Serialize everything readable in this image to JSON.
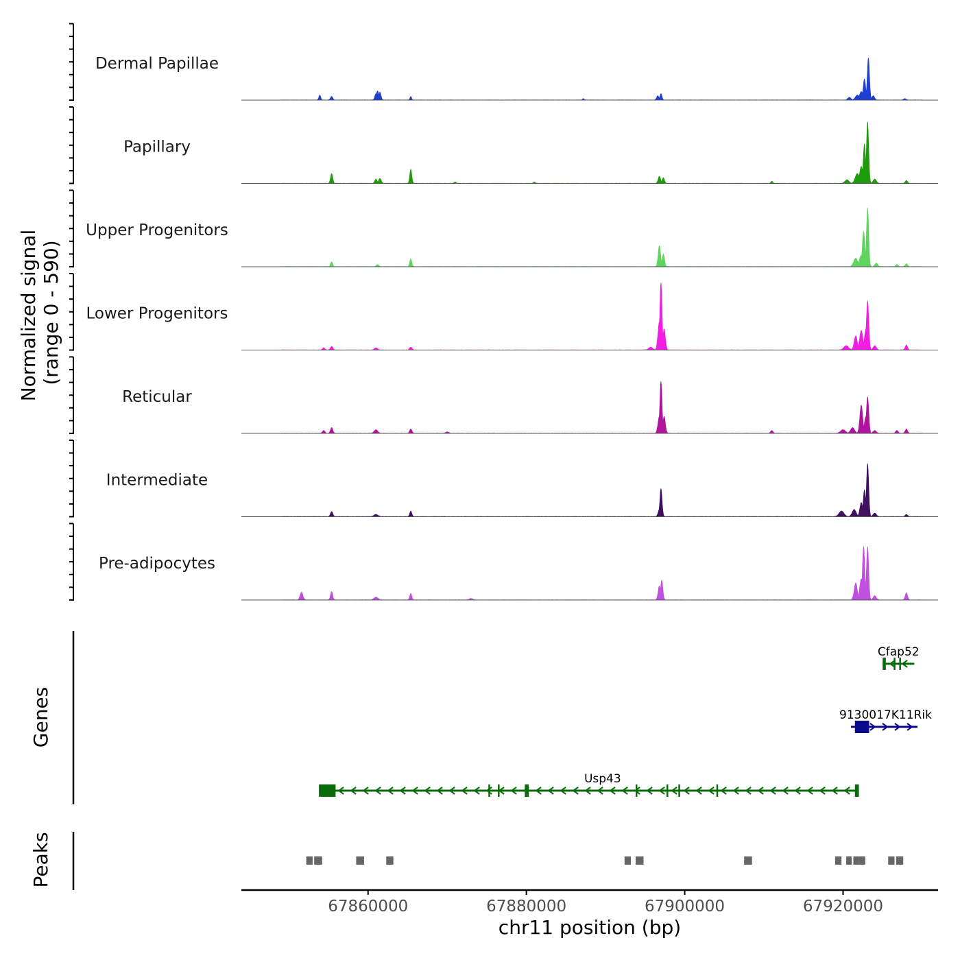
{
  "chart_data": {
    "type": "area",
    "title": "",
    "xlabel": "chr11 position (bp)",
    "ylabel": "Normalized signal",
    "ylabel_range": "(range 0 - 590)",
    "xlim": [
      67844000,
      67932000
    ],
    "ylim": [
      0,
      590
    ],
    "x_ticks": [
      67860000,
      67880000,
      67900000,
      67920000
    ],
    "x_tick_labels": [
      "67860000",
      "67880000",
      "67900000",
      "67920000"
    ],
    "tracks": [
      {
        "name": "Dermal Papillae",
        "color": "#1f3fcf",
        "peaks": [
          [
            67853900,
            35,
            120
          ],
          [
            67855400,
            25,
            150
          ],
          [
            67861000,
            45,
            150
          ],
          [
            67861200,
            65,
            160
          ],
          [
            67861500,
            55,
            140
          ],
          [
            67865400,
            25,
            100
          ],
          [
            67887200,
            10,
            100
          ],
          [
            67896600,
            30,
            150
          ],
          [
            67897000,
            45,
            130
          ],
          [
            67920800,
            20,
            200
          ],
          [
            67921800,
            35,
            250
          ],
          [
            67922300,
            60,
            220
          ],
          [
            67922700,
            150,
            160
          ],
          [
            67923200,
            300,
            140
          ],
          [
            67923800,
            30,
            180
          ],
          [
            67927800,
            10,
            150
          ]
        ]
      },
      {
        "name": "Papillary",
        "color": "#1f9a0a",
        "peaks": [
          [
            67855400,
            70,
            140
          ],
          [
            67861000,
            30,
            150
          ],
          [
            67861500,
            35,
            160
          ],
          [
            67865400,
            100,
            130
          ],
          [
            67871000,
            10,
            120
          ],
          [
            67881000,
            10,
            120
          ],
          [
            67896800,
            50,
            160
          ],
          [
            67897300,
            40,
            140
          ],
          [
            67911000,
            15,
            120
          ],
          [
            67920500,
            25,
            250
          ],
          [
            67921800,
            70,
            260
          ],
          [
            67922300,
            120,
            200
          ],
          [
            67922700,
            280,
            150
          ],
          [
            67923100,
            440,
            140
          ],
          [
            67924000,
            30,
            200
          ],
          [
            67928000,
            20,
            150
          ]
        ]
      },
      {
        "name": "Upper Progenitors",
        "color": "#5fd45f",
        "peaks": [
          [
            67855400,
            35,
            130
          ],
          [
            67861200,
            15,
            160
          ],
          [
            67865400,
            55,
            130
          ],
          [
            67896800,
            150,
            160
          ],
          [
            67897300,
            90,
            150
          ],
          [
            67921600,
            60,
            260
          ],
          [
            67922300,
            80,
            240
          ],
          [
            67922600,
            250,
            160
          ],
          [
            67923100,
            420,
            140
          ],
          [
            67924200,
            25,
            180
          ],
          [
            67926800,
            15,
            150
          ],
          [
            67928000,
            20,
            150
          ]
        ]
      },
      {
        "name": "Lower Progenitors",
        "color": "#f01ee0",
        "peaks": [
          [
            67854400,
            15,
            150
          ],
          [
            67855400,
            25,
            150
          ],
          [
            67861000,
            15,
            200
          ],
          [
            67865400,
            20,
            150
          ],
          [
            67895700,
            20,
            250
          ],
          [
            67896800,
            200,
            180
          ],
          [
            67897000,
            480,
            140
          ],
          [
            67897400,
            150,
            160
          ],
          [
            67920400,
            30,
            300
          ],
          [
            67921600,
            100,
            200
          ],
          [
            67922300,
            140,
            200
          ],
          [
            67922900,
            150,
            200
          ],
          [
            67923100,
            350,
            150
          ],
          [
            67924000,
            30,
            200
          ],
          [
            67928000,
            35,
            150
          ]
        ]
      },
      {
        "name": "Reticular",
        "color": "#b0149c",
        "peaks": [
          [
            67854400,
            20,
            150
          ],
          [
            67855400,
            40,
            150
          ],
          [
            67861000,
            25,
            220
          ],
          [
            67865400,
            30,
            150
          ],
          [
            67870000,
            10,
            200
          ],
          [
            67896800,
            120,
            180
          ],
          [
            67897000,
            370,
            140
          ],
          [
            67897400,
            120,
            160
          ],
          [
            67911000,
            20,
            150
          ],
          [
            67920000,
            25,
            300
          ],
          [
            67921200,
            40,
            250
          ],
          [
            67922300,
            200,
            180
          ],
          [
            67922900,
            120,
            200
          ],
          [
            67923100,
            260,
            150
          ],
          [
            67924000,
            20,
            200
          ],
          [
            67926800,
            20,
            150
          ],
          [
            67928000,
            30,
            150
          ]
        ]
      },
      {
        "name": "Intermediate",
        "color": "#3f0f60",
        "peaks": [
          [
            67855400,
            35,
            150
          ],
          [
            67861000,
            15,
            250
          ],
          [
            67865400,
            40,
            130
          ],
          [
            67896800,
            50,
            160
          ],
          [
            67897000,
            200,
            140
          ],
          [
            67919800,
            40,
            300
          ],
          [
            67921400,
            50,
            250
          ],
          [
            67922300,
            100,
            180
          ],
          [
            67922700,
            190,
            150
          ],
          [
            67923100,
            380,
            140
          ],
          [
            67924000,
            25,
            200
          ],
          [
            67928000,
            15,
            150
          ]
        ]
      },
      {
        "name": "Pre-adipocytes",
        "color": "#c050e0",
        "peaks": [
          [
            67851600,
            55,
            180
          ],
          [
            67855400,
            60,
            140
          ],
          [
            67861000,
            20,
            250
          ],
          [
            67865400,
            45,
            130
          ],
          [
            67873000,
            10,
            200
          ],
          [
            67896800,
            100,
            160
          ],
          [
            67897100,
            140,
            140
          ],
          [
            67921600,
            120,
            200
          ],
          [
            67922300,
            150,
            200
          ],
          [
            67922600,
            380,
            150
          ],
          [
            67923100,
            380,
            140
          ],
          [
            67924000,
            30,
            200
          ],
          [
            67928000,
            50,
            150
          ]
        ]
      }
    ],
    "genes_label": "Genes",
    "genes": [
      {
        "name": "Cfap52",
        "start": 67925000,
        "end": 67929000,
        "strand": "-",
        "color": "#0a6b0a",
        "exons": [
          [
            67925000,
            67925400
          ],
          [
            67926400,
            67926500
          ],
          [
            67927100,
            67927200
          ]
        ]
      },
      {
        "name": "9130017K11Rik",
        "start": 67921000,
        "end": 67929400,
        "strand": "+",
        "color": "#0a0a8f",
        "exons": [
          [
            67921500,
            67923300
          ]
        ]
      },
      {
        "name": "Usp43",
        "start": 67853800,
        "end": 67922000,
        "strand": "-",
        "color": "#0a6b0a",
        "exons": [
          [
            67853800,
            67855900
          ],
          [
            67875200,
            67875350
          ],
          [
            67876400,
            67876550
          ],
          [
            67879800,
            67880300
          ],
          [
            67893800,
            67893950
          ],
          [
            67897700,
            67897850
          ],
          [
            67899200,
            67899350
          ],
          [
            67904000,
            67904150
          ],
          [
            67921500,
            67922000
          ]
        ]
      }
    ],
    "peaks_label": "Peaks",
    "peak_regions": [
      [
        67852200,
        67853000
      ],
      [
        67853200,
        67854200
      ],
      [
        67858500,
        67859500
      ],
      [
        67862300,
        67863200
      ],
      [
        67892400,
        67893200
      ],
      [
        67893800,
        67894800
      ],
      [
        67907500,
        67908500
      ],
      [
        67919000,
        67919800
      ],
      [
        67920400,
        67921000
      ],
      [
        67921300,
        67921900
      ],
      [
        67922000,
        67922800
      ],
      [
        67925700,
        67926500
      ],
      [
        67926700,
        67927600
      ]
    ]
  }
}
